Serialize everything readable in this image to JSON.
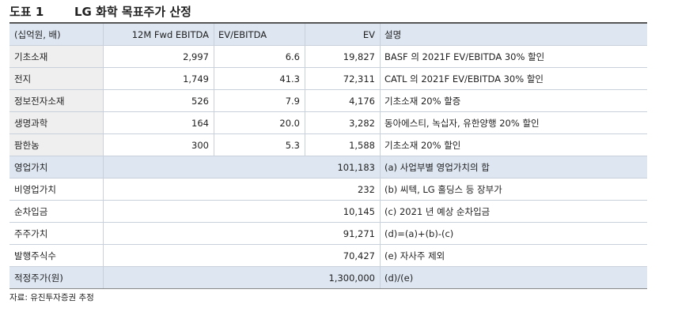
{
  "header": {
    "label": "도표 1",
    "title": "LG 화학 목표주가 산정"
  },
  "table": {
    "columns": [
      "(십억원, 배)",
      "12M Fwd EBITDA",
      "EV/EBITDA",
      "EV",
      "설명"
    ],
    "rows": [
      [
        "기초소재",
        "2,997",
        "6.6",
        "19,827",
        "BASF 의 2021F EV/EBITDA 30% 할인"
      ],
      [
        "전지",
        "1,749",
        "41.3",
        "72,311",
        "CATL 의 2021F EV/EBITDA 30% 할인"
      ],
      [
        "정보전자소재",
        "526",
        "7.9",
        "4,176",
        "기초소재 20% 할증"
      ],
      [
        "생명과학",
        "164",
        "20.0",
        "3,282",
        "동아에스티, 녹십자, 유한양행 20% 할인"
      ],
      [
        "팜한농",
        "300",
        "5.3",
        "1,588",
        "기초소재 20% 할인"
      ]
    ],
    "summary_rows": [
      [
        "영업가치",
        "101,183",
        "(a) 사업부별 영업가치의 합"
      ],
      [
        "비영업가치",
        "232",
        "(b) 씨텍, LG 홀딩스 등 장부가"
      ],
      [
        "순차입금",
        "10,145",
        "(c) 2021 년 예상 순차입금"
      ],
      [
        "주주가치",
        "91,271",
        "(d)=(a)+(b)-(c)"
      ],
      [
        "발행주식수",
        "70,427",
        "(e) 자사주 제외"
      ],
      [
        "적정주가(원)",
        "1,300,000",
        "(d)/(e)"
      ]
    ]
  },
  "footer": {
    "source": "자료: 유진투자증권 추정"
  }
}
